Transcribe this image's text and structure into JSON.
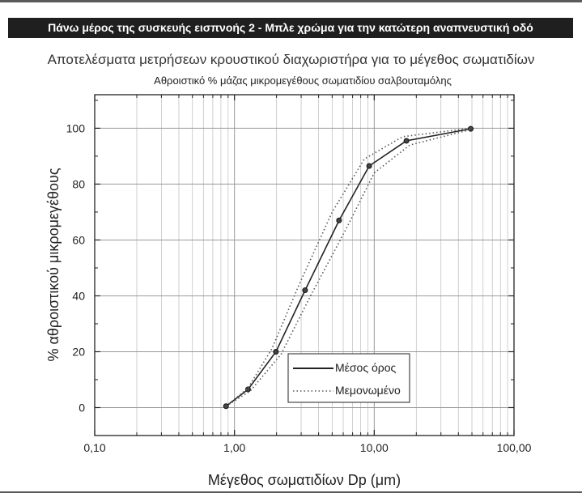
{
  "header": {
    "text": "Πάνω μέρος της συσκευής εισπνοής 2 - Μπλε χρώμα για την κατώτερη αναπνευστική οδό"
  },
  "page_title": "Αποτελέσματα μετρήσεων κρουστικού διαχωριστήρα για το μέγεθος σωματιδίων",
  "chart_data": {
    "type": "line",
    "title": "Αθροιστικό % μάζας μικρομεγέθους σωματιδίου σαλβουταμόλης",
    "xlabel": "Μέγεθος σωματιδίων Dp (μm)",
    "ylabel": "% αθροιστικού μικρομεγέθους",
    "x_scale": "log",
    "xlim": [
      0.1,
      100
    ],
    "ylim": [
      -10,
      112
    ],
    "x_ticks": [
      0.1,
      1,
      10,
      100
    ],
    "x_tick_labels": [
      "0,10",
      "1,00",
      "10,00",
      "100,00"
    ],
    "y_ticks": [
      0,
      20,
      40,
      60,
      80,
      100
    ],
    "y_tick_labels": [
      "0",
      "20",
      "40",
      "60",
      "80",
      "100"
    ],
    "grid": true,
    "legend_position": "bottom-center",
    "series": [
      {
        "name": "Μέσος όρος",
        "style": "solid",
        "color": "#222222",
        "markers": true,
        "x": [
          0.87,
          1.25,
          1.98,
          3.2,
          5.6,
          9.2,
          17,
          49
        ],
        "y": [
          0.5,
          6.5,
          20,
          42,
          67,
          86.5,
          95.5,
          99.8
        ]
      },
      {
        "name": "Μεμονωμένο",
        "style": "dotted",
        "color": "#555555",
        "markers": false,
        "x": [
          0.87,
          1.25,
          1.85,
          2.9,
          5.0,
          8.5,
          16,
          49
        ],
        "y": [
          0.5,
          7,
          21,
          44,
          70,
          89,
          97,
          100
        ]
      },
      {
        "name": "",
        "style": "dotted",
        "color": "#555555",
        "markers": false,
        "x": [
          0.87,
          1.3,
          2.15,
          3.5,
          6.3,
          10,
          18,
          49
        ],
        "y": [
          0.5,
          6,
          19,
          40,
          64,
          84,
          94,
          99.5
        ]
      }
    ]
  }
}
